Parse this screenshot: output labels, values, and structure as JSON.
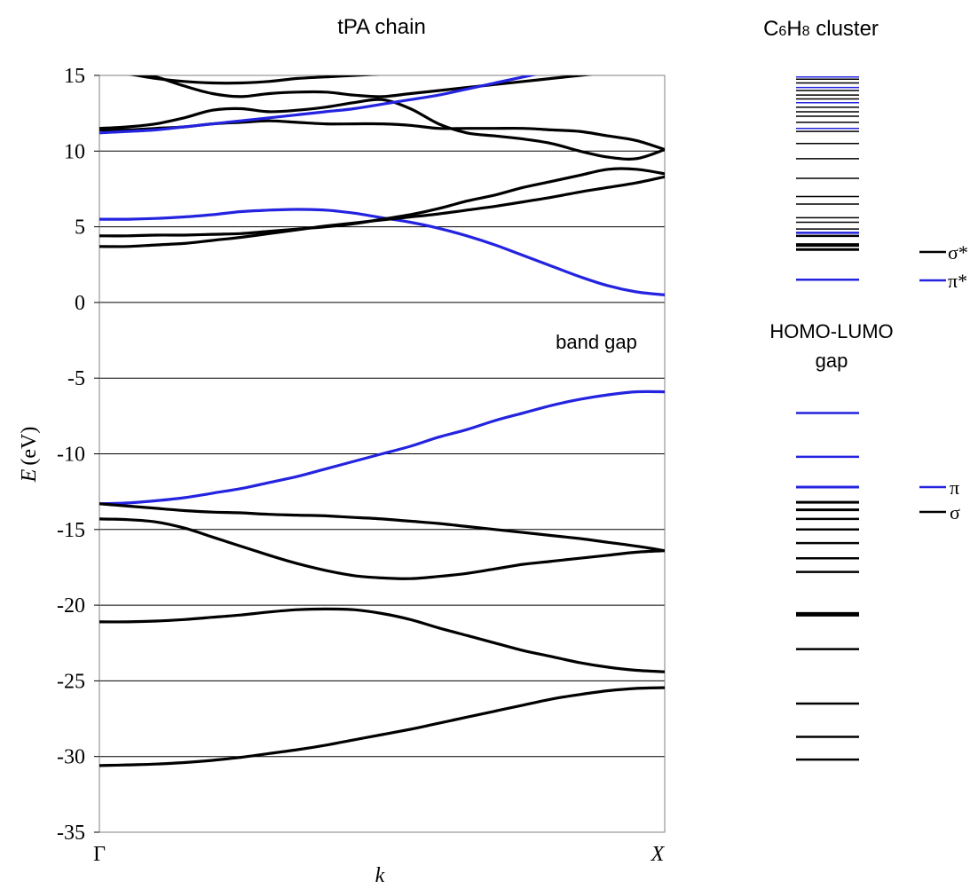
{
  "chart_data": [
    {
      "type": "line",
      "title": "tPA chain",
      "xlabel": "k",
      "ylabel": "E",
      "ylabel_unit": "(eV)",
      "x_ticks": [
        "Γ",
        "X"
      ],
      "xlim": [
        0,
        1
      ],
      "ylim": [
        -35,
        15
      ],
      "yticks": [
        15,
        10,
        5,
        0,
        -5,
        -10,
        -15,
        -20,
        -25,
        -30,
        -35
      ],
      "grid": "horizontal",
      "annotation": "band gap",
      "colors": {
        "sigma": "#000000",
        "pi": "#2323e0"
      },
      "series": [
        {
          "kind": "sigma",
          "x": [
            0,
            0.05,
            0.1,
            0.15,
            0.2,
            0.25,
            0.3,
            0.35,
            0.4,
            0.45,
            0.5
          ],
          "y": [
            15.3,
            15.1,
            14.8,
            14.6,
            14.5,
            14.5,
            14.6,
            14.8,
            14.9,
            15.0,
            15.1
          ]
        },
        {
          "kind": "sigma",
          "x": [
            0,
            0.05,
            0.1,
            0.15,
            0.2,
            0.25,
            0.3,
            0.35,
            0.4,
            0.45,
            0.5,
            0.55,
            0.6,
            0.65,
            0.7,
            0.75,
            0.8,
            0.85,
            0.9,
            0.95,
            1.0
          ],
          "y": [
            15.5,
            15.3,
            14.9,
            14.3,
            13.8,
            13.6,
            13.8,
            13.9,
            13.9,
            13.7,
            13.6,
            13.8,
            14.0,
            14.2,
            14.4,
            14.6,
            14.8,
            15.0,
            15.2,
            15.4,
            15.6
          ]
        },
        {
          "kind": "sigma",
          "x": [
            0,
            0.05,
            0.1,
            0.15,
            0.2,
            0.25,
            0.3,
            0.35,
            0.4,
            0.45,
            0.5,
            0.55,
            0.6,
            0.65,
            0.7,
            0.75,
            0.8,
            0.85,
            0.9,
            0.95,
            1.0
          ],
          "y": [
            11.5,
            11.6,
            11.8,
            12.2,
            12.7,
            12.8,
            12.6,
            12.7,
            12.9,
            13.2,
            13.4,
            12.8,
            11.8,
            11.2,
            11.0,
            10.8,
            10.5,
            10.0,
            9.6,
            9.5,
            10.1
          ]
        },
        {
          "kind": "sigma",
          "x": [
            0,
            0.05,
            0.1,
            0.15,
            0.2,
            0.25,
            0.3,
            0.35,
            0.4,
            0.45,
            0.5,
            0.55,
            0.6,
            0.65,
            0.7,
            0.75,
            0.8,
            0.85,
            0.9,
            0.95,
            1.0
          ],
          "y": [
            11.4,
            11.4,
            11.5,
            11.6,
            11.8,
            11.9,
            12.0,
            11.9,
            11.8,
            11.8,
            11.8,
            11.7,
            11.5,
            11.5,
            11.5,
            11.5,
            11.4,
            11.3,
            11.0,
            10.7,
            10.1
          ]
        },
        {
          "kind": "pi",
          "x": [
            0,
            0.05,
            0.1,
            0.15,
            0.2,
            0.25,
            0.3,
            0.35,
            0.4,
            0.45,
            0.5,
            0.55,
            0.6,
            0.65,
            0.7,
            0.75,
            0.8
          ],
          "y": [
            11.2,
            11.3,
            11.4,
            11.6,
            11.8,
            12.0,
            12.2,
            12.4,
            12.6,
            12.8,
            13.1,
            13.4,
            13.7,
            14.1,
            14.5,
            14.9,
            15.3
          ]
        },
        {
          "kind": "pi",
          "x": [
            0,
            0.05,
            0.1,
            0.15,
            0.2,
            0.25,
            0.3,
            0.35,
            0.4,
            0.45,
            0.5,
            0.55,
            0.6,
            0.65,
            0.7,
            0.75,
            0.8,
            0.85,
            0.9,
            0.95,
            1.0
          ],
          "y": [
            5.5,
            5.5,
            5.55,
            5.65,
            5.8,
            6.0,
            6.1,
            6.15,
            6.1,
            5.9,
            5.6,
            5.3,
            4.9,
            4.4,
            3.8,
            3.1,
            2.4,
            1.7,
            1.1,
            0.7,
            0.5
          ]
        },
        {
          "kind": "sigma",
          "x": [
            0,
            0.05,
            0.1,
            0.15,
            0.2,
            0.25,
            0.3,
            0.35,
            0.4,
            0.45,
            0.5,
            0.55,
            0.6,
            0.65,
            0.7,
            0.75,
            0.8,
            0.85,
            0.9,
            0.95,
            1.0
          ],
          "y": [
            4.4,
            4.4,
            4.45,
            4.45,
            4.5,
            4.55,
            4.7,
            4.85,
            5.0,
            5.2,
            5.5,
            5.8,
            6.2,
            6.7,
            7.1,
            7.6,
            8.0,
            8.4,
            8.8,
            8.8,
            8.5
          ]
        },
        {
          "kind": "sigma",
          "x": [
            0,
            0.05,
            0.1,
            0.15,
            0.2,
            0.25,
            0.3,
            0.35,
            0.4,
            0.45,
            0.5,
            0.55,
            0.6,
            0.65,
            0.7,
            0.75,
            0.8,
            0.85,
            0.9,
            0.95,
            1.0
          ],
          "y": [
            3.7,
            3.7,
            3.8,
            3.9,
            4.1,
            4.3,
            4.55,
            4.8,
            5.05,
            5.25,
            5.45,
            5.65,
            5.85,
            6.1,
            6.35,
            6.65,
            6.95,
            7.3,
            7.6,
            7.9,
            8.3
          ]
        },
        {
          "kind": "pi",
          "x": [
            0,
            0.05,
            0.1,
            0.15,
            0.2,
            0.25,
            0.3,
            0.35,
            0.4,
            0.45,
            0.5,
            0.55,
            0.6,
            0.65,
            0.7,
            0.75,
            0.8,
            0.85,
            0.9,
            0.95,
            1.0
          ],
          "y": [
            -13.3,
            -13.25,
            -13.1,
            -12.9,
            -12.6,
            -12.3,
            -11.9,
            -11.5,
            -11.0,
            -10.5,
            -10.0,
            -9.5,
            -8.9,
            -8.4,
            -7.8,
            -7.3,
            -6.8,
            -6.4,
            -6.1,
            -5.9,
            -5.9
          ]
        },
        {
          "kind": "sigma",
          "x": [
            0,
            0.05,
            0.1,
            0.15,
            0.2,
            0.25,
            0.3,
            0.35,
            0.4,
            0.45,
            0.5,
            0.55,
            0.6,
            0.65,
            0.7,
            0.75,
            0.8,
            0.85,
            0.9,
            0.95,
            1.0
          ],
          "y": [
            -13.3,
            -13.45,
            -13.6,
            -13.75,
            -13.85,
            -13.9,
            -14.0,
            -14.05,
            -14.1,
            -14.2,
            -14.3,
            -14.45,
            -14.6,
            -14.8,
            -15.0,
            -15.2,
            -15.4,
            -15.6,
            -15.85,
            -16.1,
            -16.4
          ]
        },
        {
          "kind": "sigma",
          "x": [
            0,
            0.05,
            0.1,
            0.15,
            0.2,
            0.25,
            0.3,
            0.35,
            0.4,
            0.45,
            0.5,
            0.55,
            0.6,
            0.65,
            0.7,
            0.75,
            0.8,
            0.85,
            0.9,
            0.95,
            1.0
          ],
          "y": [
            -14.3,
            -14.35,
            -14.5,
            -14.9,
            -15.5,
            -16.1,
            -16.7,
            -17.25,
            -17.7,
            -18.05,
            -18.2,
            -18.25,
            -18.1,
            -17.9,
            -17.6,
            -17.3,
            -17.1,
            -16.9,
            -16.7,
            -16.5,
            -16.4
          ]
        },
        {
          "kind": "sigma",
          "x": [
            0,
            0.05,
            0.1,
            0.15,
            0.2,
            0.25,
            0.3,
            0.35,
            0.4,
            0.45,
            0.5,
            0.55,
            0.6,
            0.65,
            0.7,
            0.75,
            0.8,
            0.85,
            0.9,
            0.95,
            1.0
          ],
          "y": [
            -21.1,
            -21.1,
            -21.05,
            -20.95,
            -20.8,
            -20.65,
            -20.45,
            -20.3,
            -20.25,
            -20.3,
            -20.55,
            -20.95,
            -21.5,
            -22.0,
            -22.5,
            -23.0,
            -23.4,
            -23.8,
            -24.1,
            -24.3,
            -24.4
          ]
        },
        {
          "kind": "sigma",
          "x": [
            0,
            0.05,
            0.1,
            0.15,
            0.2,
            0.25,
            0.3,
            0.35,
            0.4,
            0.45,
            0.5,
            0.55,
            0.6,
            0.65,
            0.7,
            0.75,
            0.8,
            0.85,
            0.9,
            0.95,
            1.0
          ],
          "y": [
            -30.6,
            -30.55,
            -30.5,
            -30.4,
            -30.25,
            -30.05,
            -29.8,
            -29.55,
            -29.25,
            -28.9,
            -28.55,
            -28.2,
            -27.8,
            -27.4,
            -27.0,
            -26.6,
            -26.2,
            -25.9,
            -25.65,
            -25.5,
            -25.45
          ]
        }
      ]
    },
    {
      "type": "levels",
      "title_prefix": "C",
      "title_sub1": "6",
      "title_mid": "H",
      "title_sub2": "8",
      "title_suffix": " cluster",
      "gap_label_line1": "HOMO-LUMO",
      "gap_label_line2": "gap",
      "legend_upper": [
        {
          "symbol": "σ*",
          "kind": "sigma"
        },
        {
          "symbol": "π*",
          "kind": "pi"
        }
      ],
      "legend_lower": [
        {
          "symbol": "π",
          "kind": "pi"
        },
        {
          "symbol": "σ",
          "kind": "sigma"
        }
      ],
      "levels": [
        {
          "e": 14.9,
          "kind": "pi"
        },
        {
          "e": 14.75,
          "kind": "sigma"
        },
        {
          "e": 14.5,
          "kind": "sigma"
        },
        {
          "e": 14.2,
          "kind": "pi"
        },
        {
          "e": 14.0,
          "kind": "sigma"
        },
        {
          "e": 13.7,
          "kind": "sigma"
        },
        {
          "e": 13.45,
          "kind": "sigma"
        },
        {
          "e": 13.2,
          "kind": "pi"
        },
        {
          "e": 12.9,
          "kind": "sigma"
        },
        {
          "e": 12.6,
          "kind": "sigma"
        },
        {
          "e": 12.3,
          "kind": "sigma"
        },
        {
          "e": 11.9,
          "kind": "sigma"
        },
        {
          "e": 11.5,
          "kind": "pi"
        },
        {
          "e": 11.3,
          "kind": "sigma"
        },
        {
          "e": 10.5,
          "kind": "sigma"
        },
        {
          "e": 9.5,
          "kind": "sigma"
        },
        {
          "e": 8.2,
          "kind": "sigma"
        },
        {
          "e": 7.0,
          "kind": "sigma"
        },
        {
          "e": 6.5,
          "kind": "sigma"
        },
        {
          "e": 5.6,
          "kind": "sigma"
        },
        {
          "e": 5.3,
          "kind": "sigma"
        },
        {
          "e": 4.85,
          "kind": "sigma"
        },
        {
          "e": 4.6,
          "kind": "pi",
          "w": 2.5
        },
        {
          "e": 4.4,
          "kind": "sigma",
          "w": 2.5
        },
        {
          "e": 3.8,
          "kind": "sigma",
          "w": 4
        },
        {
          "e": 3.5,
          "kind": "sigma",
          "w": 3
        },
        {
          "e": 1.5,
          "kind": "pi",
          "w": 2.5
        },
        {
          "e": -7.3,
          "kind": "pi",
          "w": 2.5
        },
        {
          "e": -10.2,
          "kind": "pi",
          "w": 2.5
        },
        {
          "e": -12.2,
          "kind": "pi",
          "w": 3
        },
        {
          "e": -13.2,
          "kind": "sigma",
          "w": 3
        },
        {
          "e": -13.7,
          "kind": "sigma",
          "w": 3
        },
        {
          "e": -14.3,
          "kind": "sigma",
          "w": 2.5
        },
        {
          "e": -15.0,
          "kind": "sigma",
          "w": 2.5
        },
        {
          "e": -15.9,
          "kind": "sigma",
          "w": 2.5
        },
        {
          "e": -16.9,
          "kind": "sigma",
          "w": 2.5
        },
        {
          "e": -17.8,
          "kind": "sigma",
          "w": 2.5
        },
        {
          "e": -20.6,
          "kind": "sigma",
          "w": 5
        },
        {
          "e": -22.9,
          "kind": "sigma",
          "w": 2.5
        },
        {
          "e": -26.5,
          "kind": "sigma",
          "w": 2.5
        },
        {
          "e": -28.7,
          "kind": "sigma",
          "w": 2.5
        },
        {
          "e": -30.2,
          "kind": "sigma",
          "w": 2.5
        }
      ]
    }
  ]
}
